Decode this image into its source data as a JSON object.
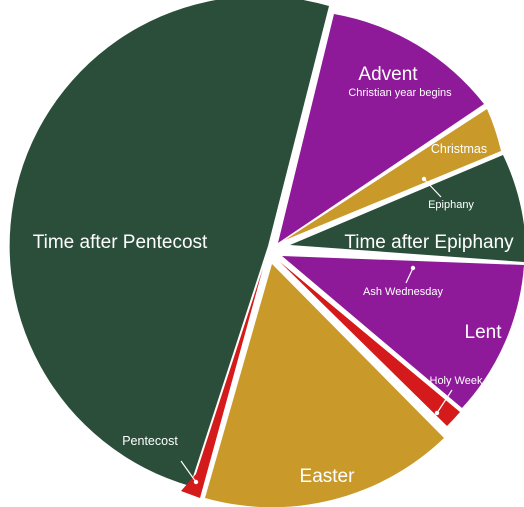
{
  "chart_data": {
    "type": "pie",
    "series": [
      {
        "key": "advent",
        "label": "Advent",
        "sublabel": "Christian year begins",
        "color": "#8e1a9a"
      },
      {
        "key": "christmas",
        "label": "Christmas",
        "color": "#c99a2a"
      },
      {
        "key": "epiphany",
        "label": "Epiphany",
        "color": "#ffffff"
      },
      {
        "key": "time_after_epiphany",
        "label": "Time after Epiphany",
        "color": "#2a4e3a"
      },
      {
        "key": "ash_wednesday",
        "label": "Ash Wednesday",
        "color": "#ffffff"
      },
      {
        "key": "lent",
        "label": "Lent",
        "color": "#8e1a9a"
      },
      {
        "key": "holy_week",
        "label": "Holy Week",
        "color": "#d41a1a"
      },
      {
        "key": "easter",
        "label": "Easter",
        "color": "#c99a2a"
      },
      {
        "key": "pentecost",
        "label": "Pentecost",
        "color": "#d41a1a"
      },
      {
        "key": "time_after_pentecost",
        "label": "Time after Pentecost",
        "color": "#2a4e3a"
      }
    ]
  }
}
